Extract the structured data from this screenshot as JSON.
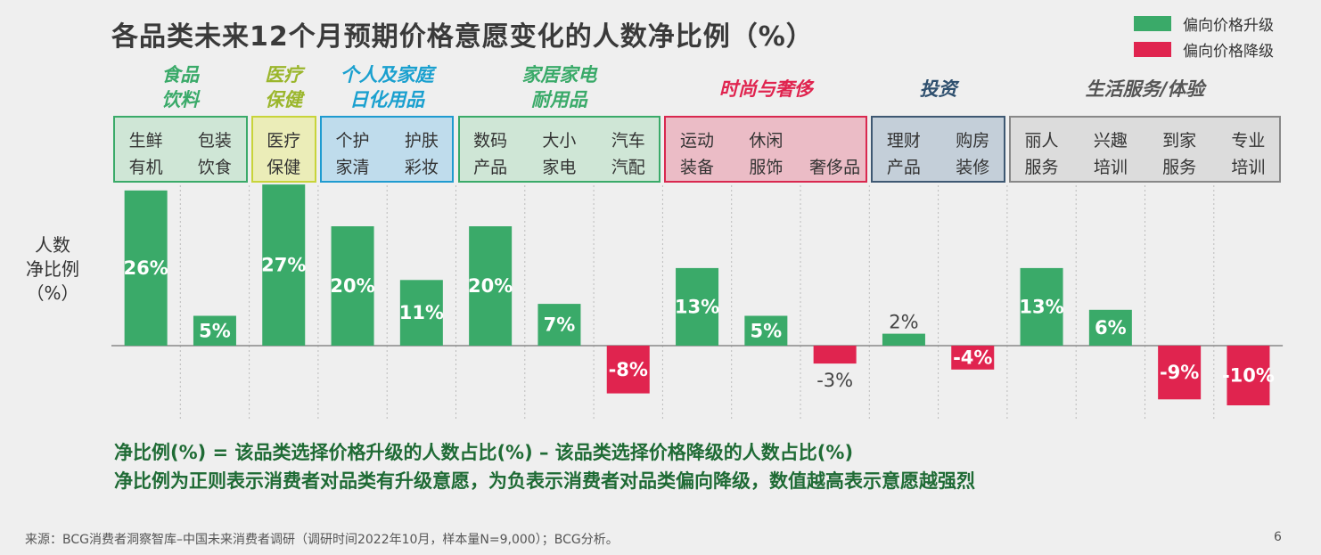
{
  "title": "各品类未来12个月预期价格意愿变化的人数净比例（%）",
  "legend": [
    {
      "label": "偏向价格升级",
      "color": "#3aaa69"
    },
    {
      "label": "偏向价格降级",
      "color": "#e0244f"
    }
  ],
  "ylabel": "人数\n净比例\n（%）",
  "groups": [
    {
      "title": "食品\n饮料",
      "color": "#3aaa69",
      "border": "#3aaa69",
      "fill": "#cfe6d6"
    },
    {
      "title": "医疗\n保健",
      "color": "#9bb62c",
      "border": "#c8d43a",
      "fill": "#ebedb8"
    },
    {
      "title": "个人及家庭\n日化用品",
      "color": "#1aa0cf",
      "border": "#1f9bd0",
      "fill": "#bfdcec"
    },
    {
      "title": "家居家电\n耐用品",
      "color": "#3aaa69",
      "border": "#3aaa69",
      "fill": "#cfe6d6"
    },
    {
      "title": "时尚与奢侈",
      "color": "#e0244f",
      "border": "#d9284f",
      "fill": "#ebbcc6"
    },
    {
      "title": "投资",
      "color": "#2e4f6e",
      "border": "#3e5872",
      "fill": "#c4cfd9"
    },
    {
      "title": "生活服务/体验",
      "color": "#555555",
      "border": "#888888",
      "fill": "#dcdcdc"
    }
  ],
  "note_line1": "净比例(%) = 该品类选择价格升级的人数占比(%) – 该品类选择价格降级的人数占比(%)",
  "note_line2": "净比例为正则表示消费者对品类有升级意愿，为负表示消费者对品类偏向降级，数值越高表示意愿越强烈",
  "source": "来源：BCG消费者洞察智库–中国未来消费者调研（调研时间2022年10月，样本量N=9,000）；BCG分析。",
  "page_number": "6",
  "chart_data": {
    "type": "bar",
    "categories": [
      "生鲜\n有机",
      "包装\n饮食",
      "医疗\n保健",
      "个护\n家清",
      "护肤\n彩妆",
      "数码\n产品",
      "大小\n家电",
      "汽车\n汽配",
      "运动\n装备",
      "休闲\n服饰",
      "奢侈品",
      "理财\n产品",
      "购房\n装修",
      "丽人\n服务",
      "兴趣\n培训",
      "到家\n服务",
      "专业\n培训"
    ],
    "group_index": [
      0,
      0,
      1,
      2,
      2,
      3,
      3,
      3,
      4,
      4,
      4,
      5,
      5,
      6,
      6,
      6,
      6
    ],
    "values": [
      26,
      5,
      27,
      20,
      11,
      20,
      7,
      -8,
      13,
      5,
      -3,
      2,
      -4,
      13,
      6,
      -9,
      -10
    ],
    "value_labels": [
      "26%",
      "5%",
      "27%",
      "20%",
      "11%",
      "20%",
      "7%",
      "-8%",
      "13%",
      "5%",
      "-3%",
      "2%",
      "-4%",
      "13%",
      "6%",
      "-9%",
      "-10%"
    ],
    "positive_color": "#3aaa69",
    "negative_color": "#e0244f",
    "ylim": [
      -10,
      27
    ]
  }
}
